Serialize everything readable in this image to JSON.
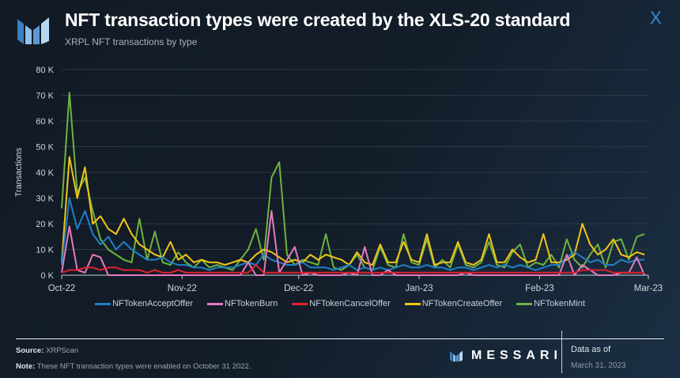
{
  "header": {
    "title": "NFT transaction types were created by the XLS-20 standard",
    "subtitle": "XRPL NFT transactions by type",
    "corner_mark": "X"
  },
  "footer": {
    "source_label": "Source:",
    "source": "XRPScan",
    "note_label": "Note:",
    "note": "These NFT transaction types were enabled on October 31 2022.",
    "brand": "MESSARI",
    "data_as_of_label": "Data as of",
    "data_as_of": "March 31, 2023"
  },
  "chart_data": {
    "type": "line",
    "title": "NFT transaction types were created by the XLS-20 standard",
    "ylabel": "Transactions",
    "xlabel": "",
    "ylim": [
      0,
      80
    ],
    "y_unit": "K",
    "y_ticks": [
      "0 K",
      "10 K",
      "20 K",
      "30 K",
      "40 K",
      "50 K",
      "60 K",
      "70 K",
      "80 K"
    ],
    "x_ticks": [
      "Oct-22",
      "Nov-22",
      "Dec-22",
      "Jan-23",
      "Feb-23",
      "Mar-23"
    ],
    "x_start": "2022-10-01",
    "x_end": "2023-03-01",
    "x_step_days": 2,
    "grid": true,
    "legend_position": "bottom",
    "series": [
      {
        "name": "NFTokenAcceptOffer",
        "color": "#1f7fc8",
        "values": [
          4,
          30,
          18,
          25,
          16,
          12,
          15,
          10,
          13,
          10,
          8,
          6,
          6,
          7,
          5,
          4,
          4,
          3,
          3,
          2,
          3,
          3,
          3,
          4,
          5,
          4,
          8,
          6,
          5,
          4,
          4,
          5,
          3,
          3,
          3,
          2,
          3,
          4,
          2,
          3,
          2,
          3,
          2,
          3,
          4,
          3,
          3,
          4,
          3,
          3,
          2,
          3,
          3,
          2,
          3,
          4,
          3,
          4,
          3,
          4,
          3,
          2,
          3,
          4,
          4,
          7,
          9,
          7,
          5,
          6,
          4,
          4,
          6,
          5,
          6,
          6
        ]
      },
      {
        "name": "NFTokenBurn",
        "color": "#e57ac0",
        "values": [
          1,
          19,
          2,
          1,
          8,
          7,
          0,
          0,
          0,
          0,
          0,
          0,
          0,
          0,
          0,
          0,
          0,
          0,
          0,
          0,
          0,
          0,
          0,
          0,
          5,
          0,
          0,
          25,
          1,
          6,
          11,
          0,
          1,
          0,
          0,
          0,
          0,
          1,
          0,
          11,
          0,
          0,
          2,
          0,
          0,
          0,
          0,
          0,
          0,
          0,
          0,
          0,
          1,
          0,
          0,
          0,
          0,
          0,
          0,
          0,
          0,
          0,
          0,
          0,
          0,
          8,
          0,
          4,
          2,
          0,
          0,
          0,
          1,
          1,
          7,
          0
        ]
      },
      {
        "name": "NFTokenCancelOffer",
        "color": "#e0202e",
        "values": [
          1,
          2,
          2,
          3,
          3,
          2,
          3,
          3,
          2,
          2,
          2,
          1,
          2,
          1,
          1,
          2,
          1,
          1,
          1,
          1,
          1,
          1,
          1,
          1,
          1,
          4,
          1,
          1,
          1,
          1,
          1,
          1,
          1,
          1,
          1,
          1,
          1,
          1,
          1,
          1,
          1,
          1,
          1,
          1,
          1,
          1,
          1,
          1,
          1,
          1,
          1,
          1,
          1,
          1,
          1,
          1,
          1,
          1,
          1,
          1,
          1,
          1,
          1,
          1,
          1,
          1,
          1,
          2,
          2,
          2,
          2,
          1,
          1,
          1,
          1,
          1
        ]
      },
      {
        "name": "NFTokenCreateOffer",
        "color": "#f2c417",
        "values": [
          5,
          46,
          30,
          42,
          20,
          23,
          18,
          16,
          22,
          16,
          12,
          10,
          8,
          7,
          13,
          6,
          8,
          5,
          6,
          5,
          5,
          4,
          5,
          6,
          5,
          8,
          10,
          9,
          7,
          5,
          6,
          5,
          8,
          6,
          8,
          7,
          6,
          4,
          9,
          5,
          4,
          12,
          5,
          5,
          13,
          6,
          5,
          16,
          4,
          5,
          5,
          13,
          5,
          4,
          6,
          16,
          5,
          5,
          10,
          7,
          5,
          6,
          16,
          5,
          5,
          6,
          8,
          20,
          12,
          8,
          10,
          14,
          8,
          7,
          9,
          8
        ]
      },
      {
        "name": "NFTokenMint",
        "color": "#6db33f",
        "values": [
          26,
          71,
          32,
          38,
          25,
          14,
          10,
          8,
          6,
          5,
          22,
          6,
          17,
          5,
          4,
          9,
          5,
          3,
          6,
          3,
          4,
          3,
          2,
          6,
          10,
          18,
          6,
          38,
          44,
          8,
          4,
          6,
          5,
          4,
          16,
          3,
          2,
          4,
          8,
          3,
          2,
          11,
          4,
          3,
          16,
          5,
          4,
          14,
          3,
          6,
          3,
          12,
          4,
          3,
          5,
          13,
          4,
          3,
          9,
          12,
          3,
          5,
          4,
          8,
          3,
          14,
          6,
          3,
          8,
          12,
          3,
          13,
          14,
          6,
          15,
          16
        ]
      }
    ]
  }
}
